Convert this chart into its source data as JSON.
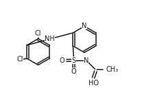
{
  "bg_color": "#ffffff",
  "line_color": "#1a1a1a",
  "lw": 1.1,
  "fs": 7.0,
  "fig_w": 2.23,
  "fig_h": 1.54,
  "dpi": 100,
  "xlim": [
    -0.5,
    10.5
  ],
  "ylim": [
    -0.5,
    7.5
  ]
}
